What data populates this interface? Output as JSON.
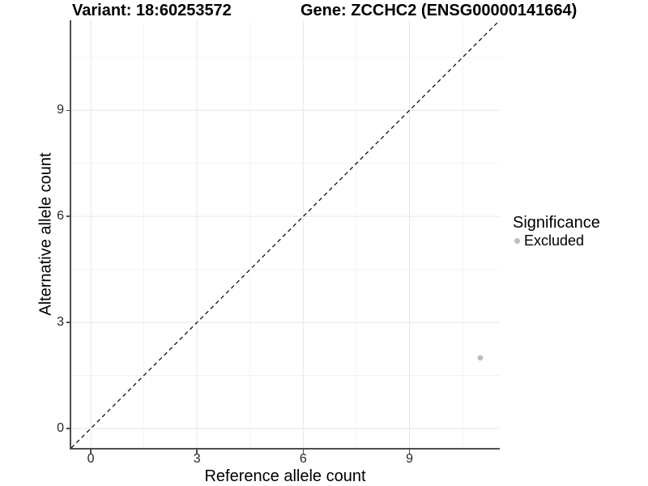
{
  "chart_data": {
    "type": "scatter",
    "titles": [
      "Variant: 18:60253572",
      "Gene: ZCCHC2 (ENSG00000141664)"
    ],
    "xlabel": "Reference allele count",
    "ylabel": "Alternative allele count",
    "xlim": [
      -0.55,
      11.55
    ],
    "ylim": [
      -0.55,
      11.55
    ],
    "x_ticks": [
      0,
      3,
      6,
      9
    ],
    "y_ticks": [
      0,
      3,
      6,
      9
    ],
    "x_minor_ticks": [
      1.5,
      4.5,
      7.5,
      10.5
    ],
    "y_minor_ticks": [
      1.5,
      4.5,
      7.5,
      10.5
    ],
    "grid": true,
    "legend": {
      "position": "right",
      "title": "Significance",
      "items": [
        {
          "label": "Excluded",
          "color": "#bebebe"
        }
      ]
    },
    "series": [
      {
        "name": "Excluded",
        "color": "#bebebe",
        "points": [
          {
            "x": 11,
            "y": 2
          }
        ]
      }
    ],
    "reference_line": {
      "type": "identity",
      "style": "dashed",
      "color": "#000000",
      "from": [
        -0.55,
        -0.55
      ],
      "to": [
        11.55,
        11.55
      ]
    },
    "colors": {
      "background": "#ffffff",
      "grid_major": "#e6e6e6",
      "grid_minor": "#f2f2f2",
      "axis_line": "#4d4d4d",
      "tick_mark": "#4d4d4d",
      "tick_label": "#262626",
      "point": "#bebebe"
    }
  }
}
